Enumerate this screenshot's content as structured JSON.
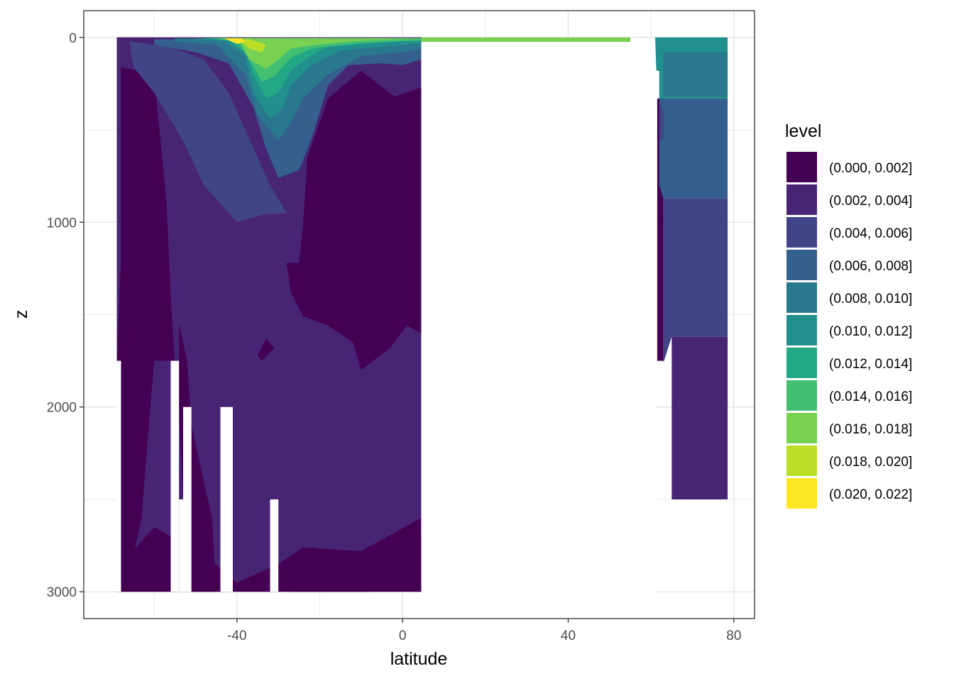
{
  "chart_data": {
    "type": "contour",
    "title": "",
    "xlabel": "latitude",
    "ylabel": "z",
    "xlim": [
      -77,
      85
    ],
    "ylim": [
      3145,
      -145
    ],
    "y_reversed": true,
    "x_ticks": [
      -40,
      0,
      40,
      80
    ],
    "x_tick_labels": [
      "-40",
      "0",
      "40",
      "80"
    ],
    "y_ticks": [
      0,
      1000,
      2000,
      3000
    ],
    "y_tick_labels": [
      "0",
      "1000",
      "2000",
      "3000"
    ],
    "grid": true,
    "legend_position": "right",
    "legend": {
      "title": "level",
      "entries": [
        {
          "label": "(0.000, 0.002]",
          "color": "#440154"
        },
        {
          "label": "(0.002, 0.004]",
          "color": "#482475"
        },
        {
          "label": "(0.004, 0.006]",
          "color": "#414487"
        },
        {
          "label": "(0.006, 0.008]",
          "color": "#355F8D"
        },
        {
          "label": "(0.008, 0.010]",
          "color": "#2A788E"
        },
        {
          "label": "(0.010, 0.012]",
          "color": "#21908C"
        },
        {
          "label": "(0.012, 0.014]",
          "color": "#22A884"
        },
        {
          "label": "(0.014, 0.016]",
          "color": "#43BF71"
        },
        {
          "label": "(0.016, 0.018]",
          "color": "#7AD151"
        },
        {
          "label": "(0.018, 0.020]",
          "color": "#BBDF27"
        },
        {
          "label": "(0.020, 0.022]",
          "color": "#FDE725"
        }
      ]
    },
    "regions": [
      {
        "level": 1,
        "note": "southern basin background",
        "points": [
          [
            -69,
            0
          ],
          [
            4.5,
            0
          ],
          [
            4.5,
            3000
          ],
          [
            -69,
            3000
          ]
        ]
      },
      {
        "level": 2,
        "points": [
          [
            -69,
            0
          ],
          [
            4.5,
            0
          ],
          [
            4.5,
            2600
          ],
          [
            -10,
            2780
          ],
          [
            -24,
            2760
          ],
          [
            -30,
            2850
          ],
          [
            -40,
            2950
          ],
          [
            -48,
            2800
          ],
          [
            -60,
            2650
          ],
          [
            -66,
            2800
          ],
          [
            -68,
            3000
          ],
          [
            -69,
            3000
          ]
        ]
      },
      {
        "level": 1,
        "points": [
          [
            -68,
            160
          ],
          [
            -60,
            200
          ],
          [
            -57,
            900
          ],
          [
            -56,
            1400
          ],
          [
            -55,
            1750
          ],
          [
            -60,
            1750
          ],
          [
            -62,
            2300
          ],
          [
            -63,
            2600
          ],
          [
            -66,
            2900
          ],
          [
            -68,
            3000
          ],
          [
            -69,
            3000
          ],
          [
            -69,
            1750
          ],
          [
            -68,
            1200
          ]
        ]
      },
      {
        "level": 1,
        "points": [
          [
            -54,
            1550
          ],
          [
            -52,
            1750
          ],
          [
            -51,
            2100
          ],
          [
            -49,
            2300
          ],
          [
            -46,
            2600
          ],
          [
            -45,
            3000
          ],
          [
            -51,
            3000
          ],
          [
            -53,
            2500
          ],
          [
            -54,
            2000
          ]
        ]
      },
      {
        "level": 1,
        "points": [
          [
            -23,
            650
          ],
          [
            -18,
            330
          ],
          [
            -10,
            180
          ],
          [
            -2,
            320
          ],
          [
            4.5,
            270
          ],
          [
            4.5,
            1600
          ],
          [
            1,
            1560
          ],
          [
            -3,
            1680
          ],
          [
            -10,
            1800
          ],
          [
            -12,
            1650
          ],
          [
            -18,
            1560
          ],
          [
            -24,
            1510
          ],
          [
            -27,
            1380
          ],
          [
            -28,
            1220
          ],
          [
            -25,
            1220
          ],
          [
            -24,
            1000
          ]
        ]
      },
      {
        "level": 1,
        "points": [
          [
            -34,
            1750
          ],
          [
            -31,
            1680
          ],
          [
            -33,
            1630
          ],
          [
            -35,
            1720
          ]
        ]
      },
      {
        "level": 1,
        "points": [
          [
            -8,
            3000
          ],
          [
            -15,
            2800
          ],
          [
            -22,
            2760
          ],
          [
            -26,
            2860
          ],
          [
            -27,
            3000
          ]
        ]
      },
      {
        "level": 1,
        "points": [
          [
            -3,
            2900
          ],
          [
            2,
            2750
          ],
          [
            4.5,
            2700
          ],
          [
            4.5,
            3000
          ]
        ]
      },
      {
        "level": 3,
        "points": [
          [
            -66,
            20
          ],
          [
            -55,
            60
          ],
          [
            -48,
            120
          ],
          [
            -42,
            300
          ],
          [
            -36,
            600
          ],
          [
            -32,
            800
          ],
          [
            -28,
            950
          ],
          [
            -34,
            960
          ],
          [
            -40,
            1000
          ],
          [
            -44,
            900
          ],
          [
            -48,
            800
          ],
          [
            -53,
            560
          ],
          [
            -60,
            300
          ],
          [
            -65,
            160
          ]
        ]
      },
      {
        "level": 4,
        "points": [
          [
            -60,
            40
          ],
          [
            -50,
            80
          ],
          [
            -42,
            140
          ],
          [
            -36,
            380
          ],
          [
            -33,
            600
          ],
          [
            -30,
            760
          ],
          [
            -25,
            720
          ],
          [
            -22,
            550
          ],
          [
            -18,
            260
          ],
          [
            -13,
            150
          ],
          [
            -5,
            140
          ],
          [
            0,
            150
          ],
          [
            4.5,
            120
          ],
          [
            4.5,
            20
          ],
          [
            -60,
            10
          ]
        ]
      },
      {
        "level": 5,
        "points": [
          [
            -55,
            20
          ],
          [
            -45,
            40
          ],
          [
            -38,
            200
          ],
          [
            -35,
            420
          ],
          [
            -30,
            560
          ],
          [
            -27,
            460
          ],
          [
            -24,
            330
          ],
          [
            -18,
            200
          ],
          [
            -10,
            100
          ],
          [
            0,
            80
          ],
          [
            4.5,
            60
          ],
          [
            4.5,
            10
          ],
          [
            -55,
            5
          ]
        ]
      },
      {
        "level": 6,
        "points": [
          [
            -50,
            10
          ],
          [
            -43,
            20
          ],
          [
            -38,
            100
          ],
          [
            -36,
            300
          ],
          [
            -32,
            440
          ],
          [
            -29,
            380
          ],
          [
            -27,
            260
          ],
          [
            -22,
            150
          ],
          [
            -15,
            70
          ],
          [
            0,
            40
          ],
          [
            4.5,
            30
          ],
          [
            4.5,
            5
          ],
          [
            -50,
            5
          ]
        ]
      },
      {
        "level": 7,
        "points": [
          [
            -48,
            5
          ],
          [
            -42,
            15
          ],
          [
            -38,
            80
          ],
          [
            -36,
            200
          ],
          [
            -33,
            330
          ],
          [
            -30,
            300
          ],
          [
            -27,
            180
          ],
          [
            -23,
            110
          ],
          [
            -18,
            50
          ],
          [
            0,
            20
          ],
          [
            4.5,
            20
          ],
          [
            4.5,
            3
          ],
          [
            -48,
            3
          ]
        ]
      },
      {
        "level": 8,
        "points": [
          [
            -46,
            5
          ],
          [
            -40,
            20
          ],
          [
            -37,
            120
          ],
          [
            -34,
            240
          ],
          [
            -31,
            210
          ],
          [
            -27,
            110
          ],
          [
            -22,
            60
          ],
          [
            -10,
            30
          ],
          [
            4.5,
            15
          ],
          [
            4.5,
            3
          ],
          [
            -46,
            3
          ]
        ]
      },
      {
        "level": 9,
        "points": [
          [
            -44,
            5
          ],
          [
            -39,
            30
          ],
          [
            -37,
            120
          ],
          [
            -33,
            170
          ],
          [
            -30,
            120
          ],
          [
            -27,
            60
          ],
          [
            -21,
            40
          ],
          [
            -12,
            20
          ],
          [
            4.5,
            5
          ],
          [
            -44,
            3
          ]
        ]
      },
      {
        "level": 10,
        "points": [
          [
            -43,
            5
          ],
          [
            -39,
            20
          ],
          [
            -37,
            60
          ],
          [
            -34,
            80
          ],
          [
            -33,
            40
          ],
          [
            -37,
            10
          ]
        ]
      },
      {
        "level": 11,
        "points": [
          [
            -43,
            5
          ],
          [
            -40,
            35
          ],
          [
            -38,
            25
          ],
          [
            -39,
            5
          ]
        ]
      },
      {
        "level": 9,
        "note": "northern surface layer",
        "points": [
          [
            4.5,
            0
          ],
          [
            55,
            0
          ],
          [
            55,
            25
          ],
          [
            4.5,
            25
          ]
        ]
      },
      {
        "level": 5,
        "points": [
          [
            55,
            0
          ],
          [
            61,
            0
          ],
          [
            61,
            80
          ],
          [
            55,
            60
          ]
        ]
      },
      {
        "level": 4,
        "points": [
          [
            55,
            0
          ],
          [
            59,
            0
          ],
          [
            58,
            30
          ]
        ]
      },
      {
        "level": 1,
        "note": "north high-latitude background",
        "points": [
          [
            61.5,
            300
          ],
          [
            63,
            300
          ],
          [
            63,
            1750
          ],
          [
            61.5,
            1750
          ]
        ]
      },
      {
        "level": 6,
        "points": [
          [
            61,
            0
          ],
          [
            78.5,
            0
          ],
          [
            78.5,
            330
          ],
          [
            61.5,
            330
          ]
        ]
      },
      {
        "level": 5,
        "points": [
          [
            63,
            80
          ],
          [
            78.5,
            80
          ],
          [
            78.5,
            320
          ],
          [
            63,
            320
          ]
        ]
      },
      {
        "level": 4,
        "points": [
          [
            62,
            330
          ],
          [
            78.5,
            330
          ],
          [
            78.5,
            870
          ],
          [
            63,
            870
          ],
          [
            62,
            800
          ]
        ]
      },
      {
        "level": 3,
        "points": [
          [
            63,
            870
          ],
          [
            78.5,
            870
          ],
          [
            78.5,
            1620
          ],
          [
            65,
            1620
          ],
          [
            63,
            1760
          ]
        ]
      },
      {
        "level": 3,
        "points": [
          [
            62,
            350
          ],
          [
            63,
            400
          ],
          [
            63,
            550
          ],
          [
            62,
            560
          ]
        ]
      },
      {
        "level": 2,
        "points": [
          [
            65,
            1620
          ],
          [
            78.5,
            1620
          ],
          [
            78.5,
            2500
          ],
          [
            65,
            2500
          ]
        ]
      }
    ],
    "ocean_mask": {
      "note": "white no-data areas inside the basin",
      "rects": [
        [
          4.5,
          25,
          61,
          3200
        ],
        [
          55,
          0,
          61,
          30
        ],
        [
          -69.1,
          1750,
          -68,
          3000
        ],
        [
          -56,
          1750,
          -54,
          3000
        ],
        [
          -53,
          2000,
          -51,
          2500
        ],
        [
          -54,
          2500,
          -51,
          3000
        ],
        [
          -44,
          2000,
          -41,
          3000
        ],
        [
          -32,
          2500,
          -30,
          3000
        ]
      ],
      "north_step": [
        [
          55,
          0
        ],
        [
          57,
          0
        ],
        [
          57,
          40
        ],
        [
          58,
          40
        ],
        [
          58,
          80
        ],
        [
          60,
          80
        ],
        [
          60,
          120
        ],
        [
          61,
          120
        ],
        [
          61,
          180
        ],
        [
          62,
          180
        ],
        [
          62,
          330
        ],
        [
          61,
          330
        ],
        [
          61,
          3200
        ],
        [
          55,
          3200
        ]
      ]
    }
  }
}
